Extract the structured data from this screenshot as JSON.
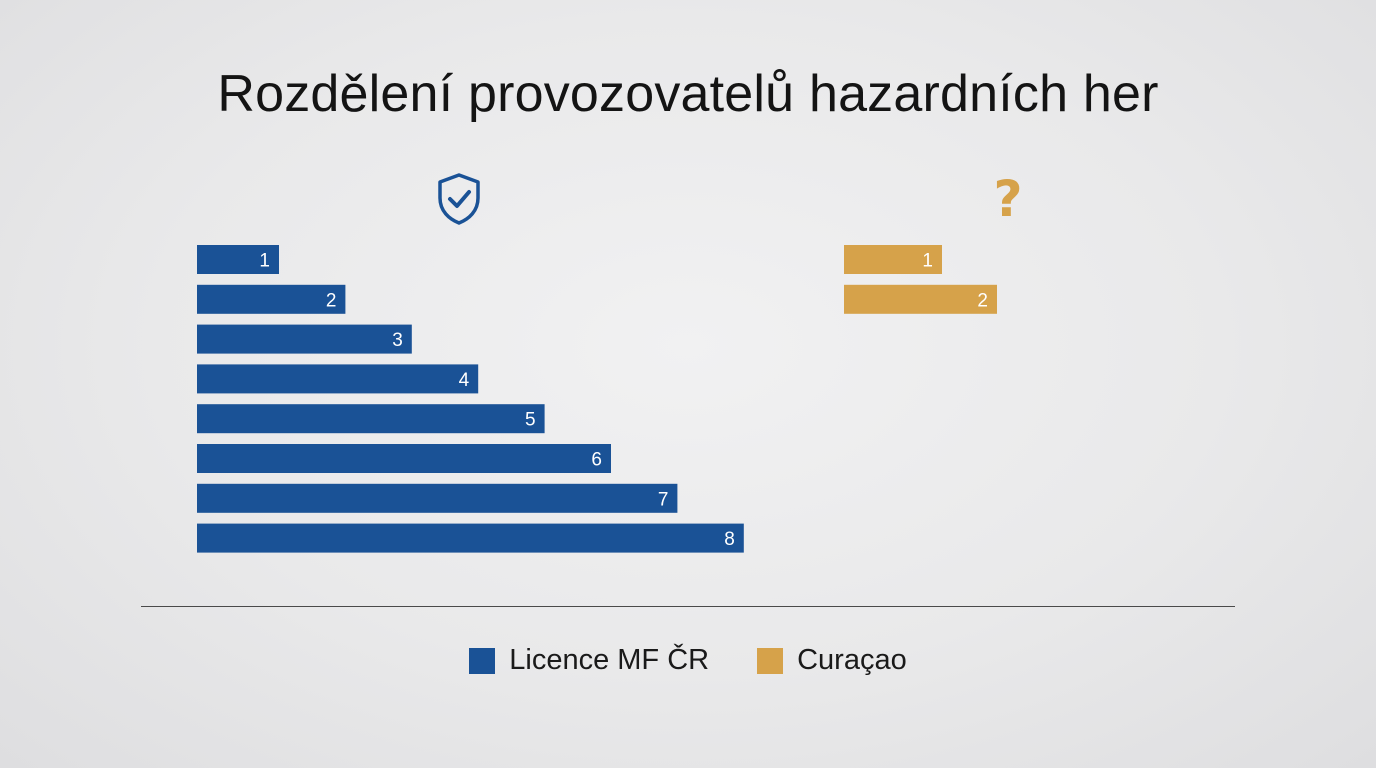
{
  "chart_data": {
    "type": "bar",
    "orientation": "horizontal",
    "title": "Rozdělení provozovatelů hazardních her",
    "series": [
      {
        "name": "Licence MF ČR",
        "color": "#1a5296",
        "icon": "shield-check-icon",
        "values": [
          1,
          2,
          3,
          4,
          5,
          6,
          7,
          8
        ]
      },
      {
        "name": "Curaçao",
        "color": "#d6a24a",
        "icon": "question-mark-icon",
        "values": [
          1,
          2
        ]
      }
    ],
    "legend_position": "bottom",
    "grid": false
  },
  "icons": {
    "shield": "shield-check-icon",
    "question": "?"
  }
}
